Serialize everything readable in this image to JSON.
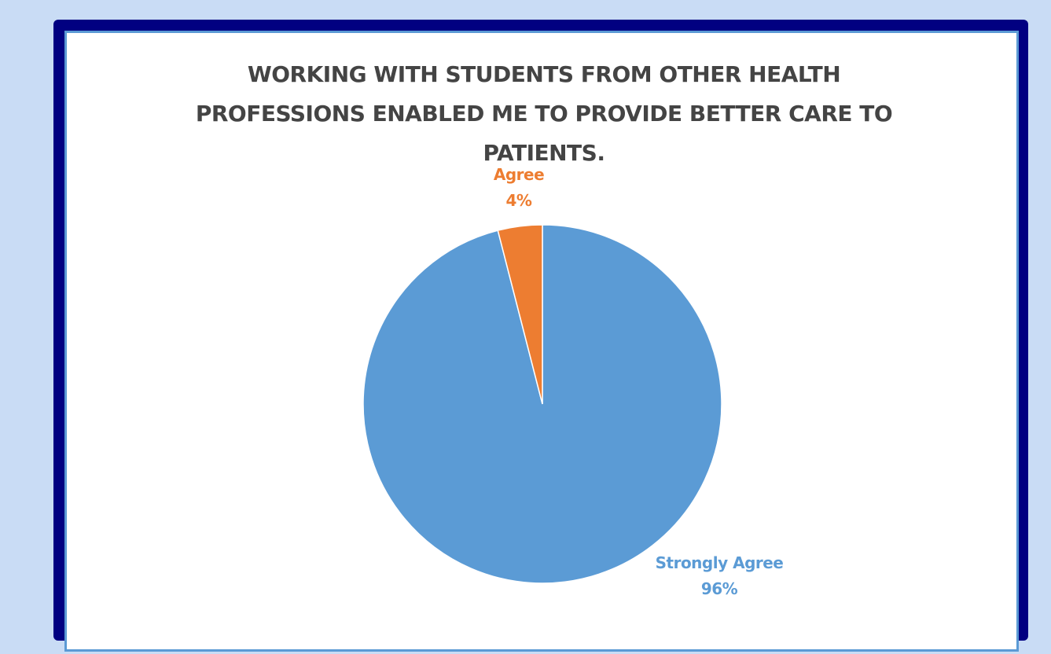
{
  "chart_data": {
    "type": "pie",
    "title_lines": [
      "WORKING WITH STUDENTS FROM OTHER HEALTH",
      "PROFESSIONS ENABLED ME TO PROVIDE BETTER CARE TO",
      "PATIENTS."
    ],
    "slices": [
      {
        "label": "Strongly Agree",
        "value": 96,
        "value_label": "96%",
        "color": "#5b9bd5"
      },
      {
        "label": "Agree",
        "value": 4,
        "value_label": "4%",
        "color": "#ed7d31"
      }
    ],
    "start_angle_deg": 0,
    "direction": "clockwise",
    "legend": "none"
  },
  "colors": {
    "background": "#c9dcf5",
    "frame": "#010081",
    "panel_border": "#5b9ad5",
    "title_text": "#444444"
  }
}
